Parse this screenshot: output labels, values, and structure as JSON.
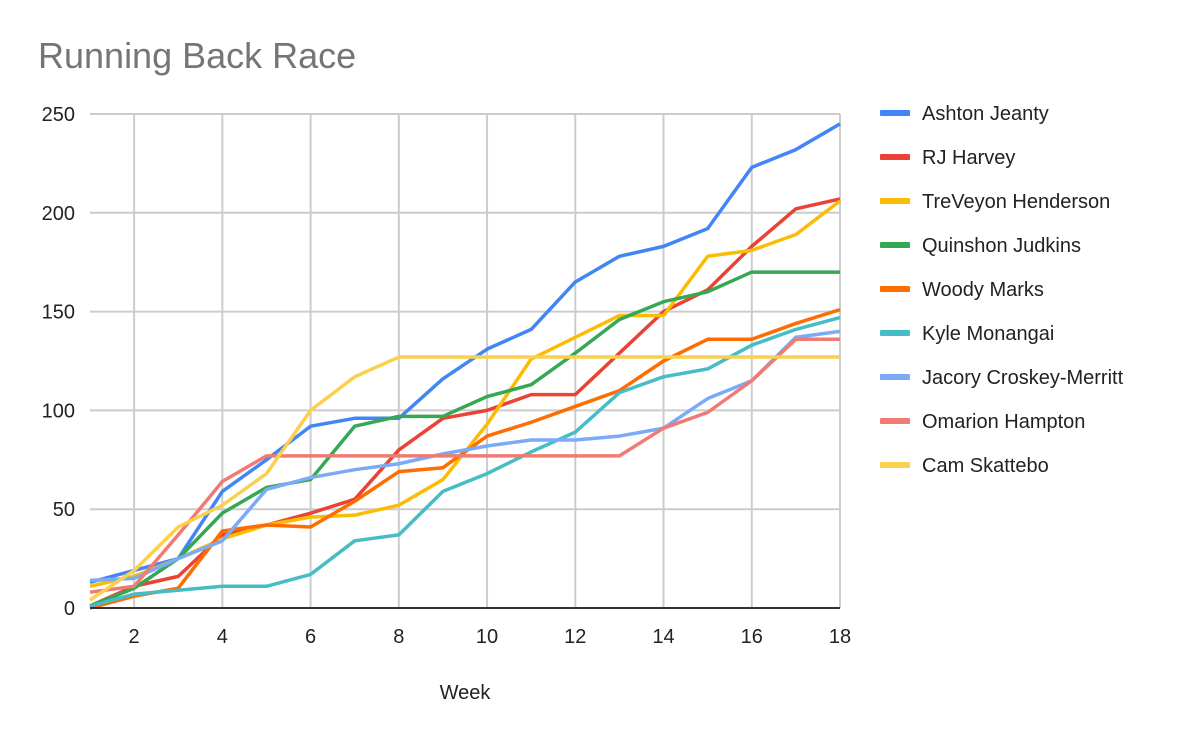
{
  "chart_data": {
    "type": "line",
    "title": "Running Back Race",
    "xlabel": "Week",
    "ylabel": "",
    "xlim": [
      1,
      18
    ],
    "ylim": [
      0,
      250
    ],
    "x_ticks": [
      2,
      4,
      6,
      8,
      10,
      12,
      14,
      16,
      18
    ],
    "y_ticks": [
      0,
      50,
      100,
      150,
      200,
      250
    ],
    "grid": true,
    "legend_position": "right",
    "x": [
      1,
      2,
      3,
      4,
      5,
      6,
      7,
      8,
      9,
      10,
      11,
      12,
      13,
      14,
      15,
      16,
      17,
      18
    ],
    "series": [
      {
        "name": "Ashton Jeanty",
        "color": "#4285F4",
        "values": [
          13,
          19,
          25,
          59,
          75,
          92,
          96,
          96,
          116,
          131,
          141,
          165,
          178,
          183,
          192,
          223,
          232,
          245
        ]
      },
      {
        "name": "RJ Harvey",
        "color": "#EA4335",
        "values": [
          1,
          11,
          16,
          37,
          42,
          48,
          55,
          80,
          96,
          100,
          108,
          108,
          129,
          150,
          161,
          183,
          202,
          207
        ]
      },
      {
        "name": "TreVeyon Henderson",
        "color": "#FBBC04",
        "values": [
          11,
          16,
          25,
          35,
          42,
          46,
          47,
          52,
          65,
          93,
          126,
          137,
          148,
          148,
          178,
          181,
          189,
          206
        ]
      },
      {
        "name": "Quinshon Judkins",
        "color": "#34A853",
        "values": [
          1,
          10,
          25,
          48,
          61,
          65,
          92,
          97,
          97,
          107,
          113,
          129,
          146,
          155,
          160,
          170,
          170,
          170
        ]
      },
      {
        "name": "Woody Marks",
        "color": "#FF6D01",
        "values": [
          0,
          6,
          10,
          39,
          42,
          41,
          54,
          69,
          71,
          87,
          94,
          102,
          110,
          125,
          136,
          136,
          144,
          151
        ]
      },
      {
        "name": "Kyle Monangai",
        "color": "#46BDC6",
        "values": [
          1,
          7,
          9,
          11,
          11,
          17,
          34,
          37,
          59,
          68,
          79,
          89,
          109,
          117,
          121,
          133,
          141,
          147
        ]
      },
      {
        "name": "Jacory Croskey-Merritt",
        "color": "#7BAAF7",
        "values": [
          14,
          15,
          25,
          34,
          60,
          66,
          70,
          73,
          78,
          82,
          85,
          85,
          87,
          91,
          106,
          115,
          137,
          140
        ]
      },
      {
        "name": "Omarion Hampton",
        "color": "#F07B72",
        "values": [
          8,
          11,
          37,
          64,
          77,
          77,
          77,
          77,
          77,
          77,
          77,
          77,
          77,
          91,
          99,
          115,
          136,
          136
        ]
      },
      {
        "name": "Cam Skattebo",
        "color": "#FCD04F",
        "values": [
          4,
          19,
          41,
          52,
          68,
          100,
          117,
          127,
          127,
          127,
          127,
          127,
          127,
          127,
          127,
          127,
          127,
          127
        ]
      }
    ]
  }
}
